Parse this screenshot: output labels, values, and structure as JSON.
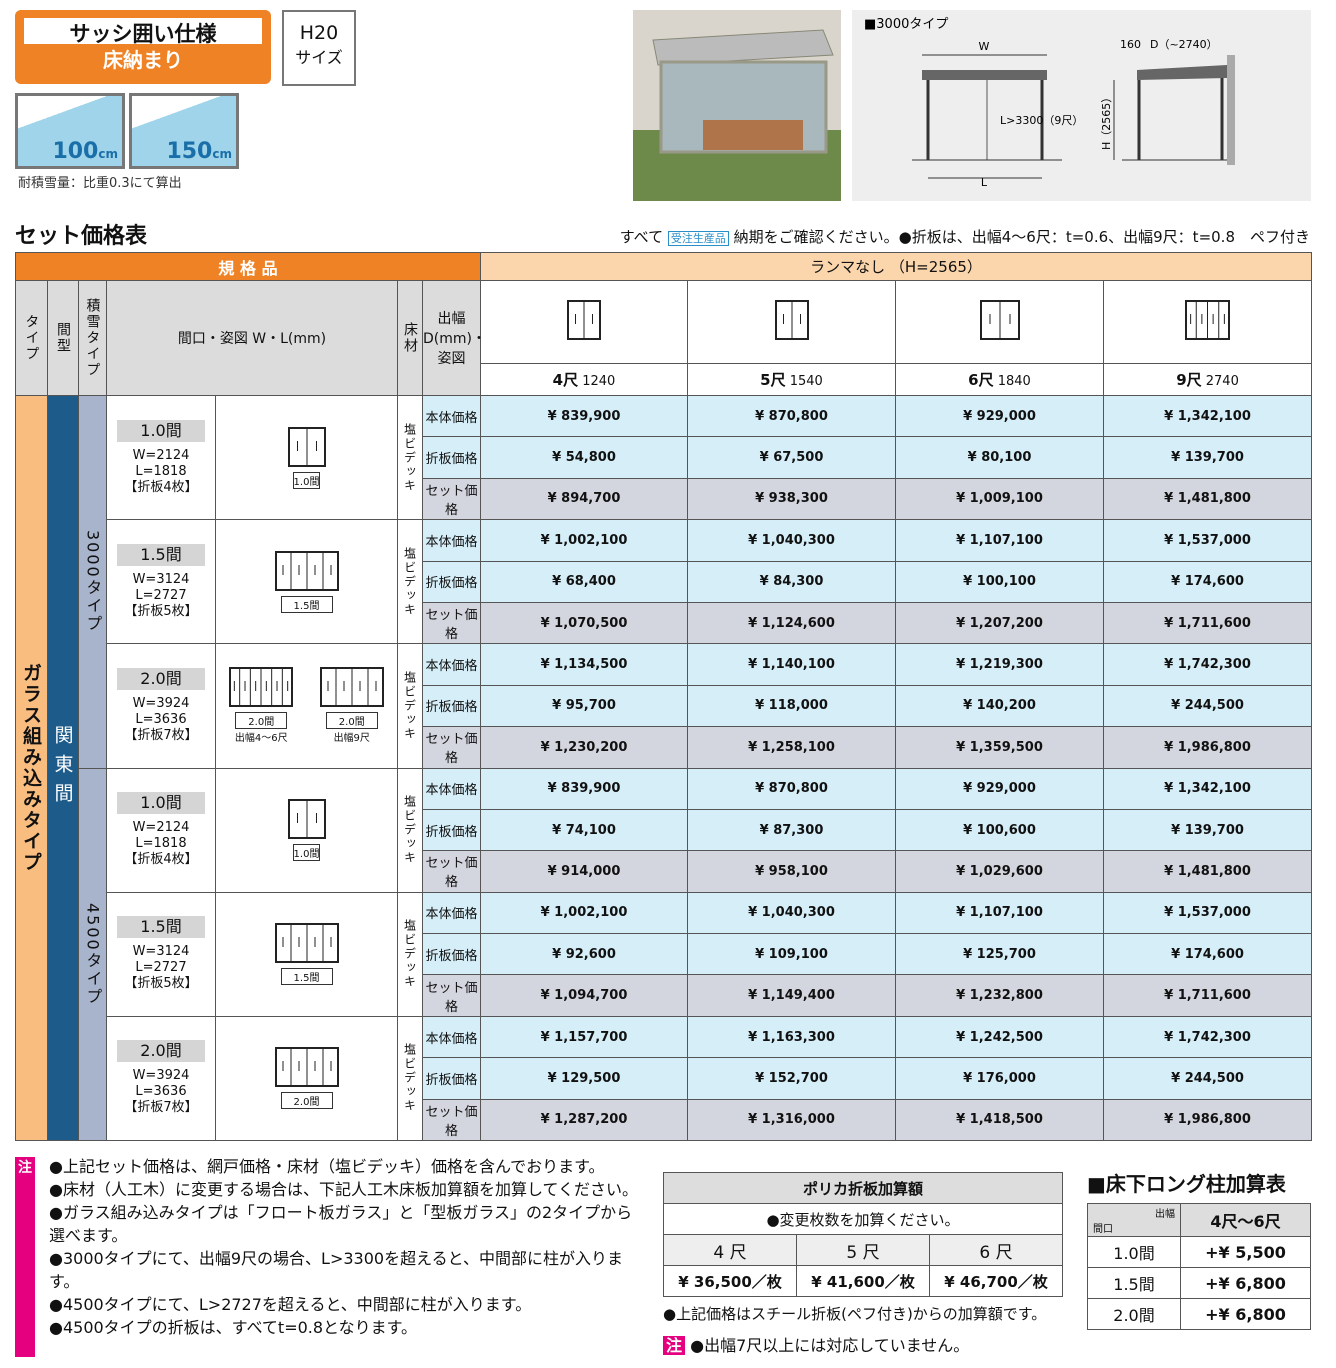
{
  "header": {
    "badge_title": "サッシ囲い仕様",
    "badge_sub": "床納まり",
    "size": "H20",
    "size_sub": "サイズ",
    "snow": [
      {
        "num": "100",
        "unit": "cm"
      },
      {
        "num": "150",
        "unit": "cm"
      }
    ],
    "snow_note": "耐積雪量：比重0.3にて算出"
  },
  "diagram": {
    "label": "■3000タイプ",
    "w": "W",
    "l": "L",
    "l_note": "L>3300（9尺）",
    "offset": "160",
    "d": "D（~2740）",
    "h": "H（2565）"
  },
  "section": {
    "title": "セット価格表",
    "note_prefix": "すべて",
    "badge": "受注生産品",
    "note_suffix": "納期をご確認ください。●折板は、出幅4～6尺：t=0.6、出幅9尺：t=0.8　ペフ付き"
  },
  "table": {
    "spec": "規 格 品",
    "lanma": "ランマなし （H=2565）",
    "col_type": "タイプ",
    "col_ma": "間型",
    "col_snow": "積雪タイプ",
    "col_ken": "間口・姿図 W・L(mm)",
    "col_floor": "床材",
    "col_depth": "出幅 D(mm)・姿図",
    "sizes": [
      {
        "name": "4尺",
        "mm": "1240"
      },
      {
        "name": "5尺",
        "mm": "1540"
      },
      {
        "name": "6尺",
        "mm": "1840"
      },
      {
        "name": "9尺",
        "mm": "2740"
      }
    ],
    "type": "ガラス組み込みタイプ",
    "ma": "関東間",
    "snow_types": [
      {
        "name": "3000タイプ",
        "groups": [
          {
            "ken": "1.0間",
            "w": "W=2124",
            "l": "L=1818",
            "panels": "【折板4枚】",
            "figures": [
              {
                "label": "1.0間"
              }
            ],
            "floor": "塩ビデッキ",
            "rows": [
              {
                "label": "本体価格",
                "prices": [
                  "¥ 839,900",
                  "¥ 870,800",
                  "¥ 929,000",
                  "¥ 1,342,100"
                ]
              },
              {
                "label": "折板価格",
                "prices": [
                  "¥ 54,800",
                  "¥ 67,500",
                  "¥ 80,100",
                  "¥ 139,700"
                ]
              },
              {
                "label": "セット価格",
                "prices": [
                  "¥ 894,700",
                  "¥ 938,300",
                  "¥ 1,009,100",
                  "¥ 1,481,800"
                ]
              }
            ]
          },
          {
            "ken": "1.5間",
            "w": "W=3124",
            "l": "L=2727",
            "panels": "【折板5枚】",
            "figures": [
              {
                "label": "1.5間"
              }
            ],
            "floor": "塩ビデッキ",
            "rows": [
              {
                "label": "本体価格",
                "prices": [
                  "¥ 1,002,100",
                  "¥ 1,040,300",
                  "¥ 1,107,100",
                  "¥ 1,537,000"
                ]
              },
              {
                "label": "折板価格",
                "prices": [
                  "¥ 68,400",
                  "¥ 84,300",
                  "¥ 100,100",
                  "¥ 174,600"
                ]
              },
              {
                "label": "セット価格",
                "prices": [
                  "¥ 1,070,500",
                  "¥ 1,124,600",
                  "¥ 1,207,200",
                  "¥ 1,711,600"
                ]
              }
            ]
          },
          {
            "ken": "2.0間",
            "w": "W=3924",
            "l": "L=3636",
            "panels": "【折板7枚】",
            "figures": [
              {
                "label": "2.0間",
                "caption": "出幅4～6尺"
              },
              {
                "label": "2.0間",
                "caption": "出幅9尺"
              }
            ],
            "floor": "塩ビデッキ",
            "rows": [
              {
                "label": "本体価格",
                "prices": [
                  "¥ 1,134,500",
                  "¥ 1,140,100",
                  "¥ 1,219,300",
                  "¥ 1,742,300"
                ]
              },
              {
                "label": "折板価格",
                "prices": [
                  "¥ 95,700",
                  "¥ 118,000",
                  "¥ 140,200",
                  "¥ 244,500"
                ]
              },
              {
                "label": "セット価格",
                "prices": [
                  "¥ 1,230,200",
                  "¥ 1,258,100",
                  "¥ 1,359,500",
                  "¥ 1,986,800"
                ]
              }
            ]
          }
        ]
      },
      {
        "name": "4500タイプ",
        "groups": [
          {
            "ken": "1.0間",
            "w": "W=2124",
            "l": "L=1818",
            "panels": "【折板4枚】",
            "figures": [
              {
                "label": "1.0間"
              }
            ],
            "floor": "塩ビデッキ",
            "rows": [
              {
                "label": "本体価格",
                "prices": [
                  "¥ 839,900",
                  "¥ 870,800",
                  "¥ 929,000",
                  "¥ 1,342,100"
                ]
              },
              {
                "label": "折板価格",
                "prices": [
                  "¥ 74,100",
                  "¥ 87,300",
                  "¥ 100,600",
                  "¥ 139,700"
                ]
              },
              {
                "label": "セット価格",
                "prices": [
                  "¥ 914,000",
                  "¥ 958,100",
                  "¥ 1,029,600",
                  "¥ 1,481,800"
                ]
              }
            ]
          },
          {
            "ken": "1.5間",
            "w": "W=3124",
            "l": "L=2727",
            "panels": "【折板5枚】",
            "figures": [
              {
                "label": "1.5間"
              }
            ],
            "floor": "塩ビデッキ",
            "rows": [
              {
                "label": "本体価格",
                "prices": [
                  "¥ 1,002,100",
                  "¥ 1,040,300",
                  "¥ 1,107,100",
                  "¥ 1,537,000"
                ]
              },
              {
                "label": "折板価格",
                "prices": [
                  "¥ 92,600",
                  "¥ 109,100",
                  "¥ 125,700",
                  "¥ 174,600"
                ]
              },
              {
                "label": "セット価格",
                "prices": [
                  "¥ 1,094,700",
                  "¥ 1,149,400",
                  "¥ 1,232,800",
                  "¥ 1,711,600"
                ]
              }
            ]
          },
          {
            "ken": "2.0間",
            "w": "W=3924",
            "l": "L=3636",
            "panels": "【折板7枚】",
            "figures": [
              {
                "label": "2.0間"
              }
            ],
            "floor": "塩ビデッキ",
            "rows": [
              {
                "label": "本体価格",
                "prices": [
                  "¥ 1,157,700",
                  "¥ 1,163,300",
                  "¥ 1,242,500",
                  "¥ 1,742,300"
                ]
              },
              {
                "label": "折板価格",
                "prices": [
                  "¥ 129,500",
                  "¥ 152,700",
                  "¥ 176,000",
                  "¥ 244,500"
                ]
              },
              {
                "label": "セット価格",
                "prices": [
                  "¥ 1,287,200",
                  "¥ 1,316,000",
                  "¥ 1,418,500",
                  "¥ 1,986,800"
                ]
              }
            ]
          }
        ]
      }
    ]
  },
  "notes": {
    "mark": "注",
    "items": [
      "●上記セット価格は、網戸価格・床材（塩ビデッキ）価格を含んでおります。",
      "●床材（人工木）に変更する場合は、下記人工木床板加算額を加算してください。",
      "●ガラス組み込みタイプは「フロート板ガラス」と「型板ガラス」の2タイプから選べます。",
      "●3000タイプにて、出幅9尺の場合、L>3300を超えると、中間部に柱が入ります。",
      "●4500タイプにて、L>2727を超えると、中間部に柱が入ります。",
      "●4500タイプの折板は、すべてt=0.8となります。"
    ]
  },
  "polica": {
    "title": "ポリカ折板加算額",
    "sub": "●変更枚数を加算ください。",
    "headers": [
      "4 尺",
      "5 尺",
      "6 尺"
    ],
    "values": [
      "¥ 36,500／枚",
      "¥ 41,600／枚",
      "¥ 46,700／枚"
    ],
    "note": "●上記価格はスチール折板(ペフ付き)からの加算額です。",
    "mark": "注",
    "note2": "●出幅7尺以上には対応していません。"
  },
  "long": {
    "title": "■床下ロング柱加算表",
    "corner_top": "出幅",
    "corner_bottom": "間口",
    "col": "4尺～6尺",
    "rows": [
      [
        "1.0間",
        "+¥ 5,500"
      ],
      [
        "1.5間",
        "+¥ 6,800"
      ],
      [
        "2.0間",
        "+¥ 6,800"
      ]
    ]
  }
}
